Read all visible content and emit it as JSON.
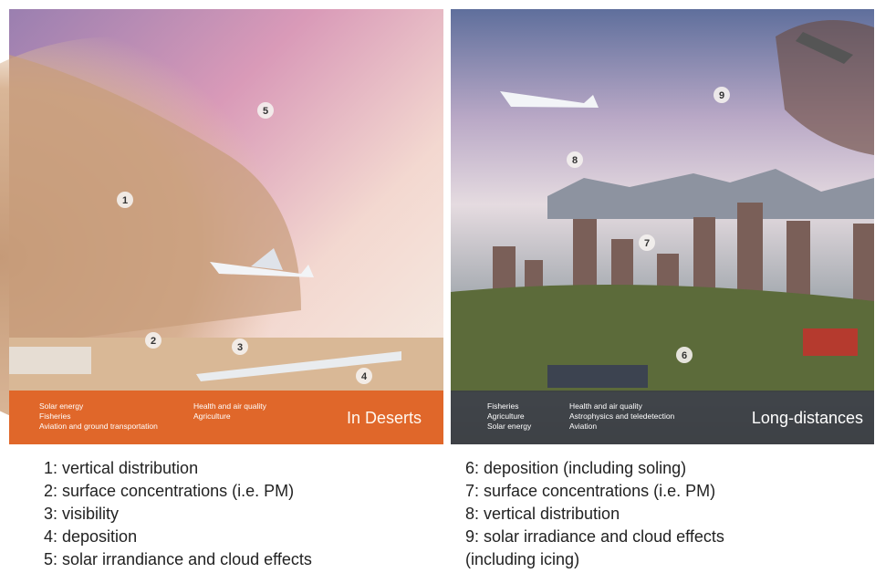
{
  "panels": [
    {
      "title": "In Deserts",
      "sectors_left": [
        "Solar energy",
        "Fisheries",
        "Aviation and ground transportation"
      ],
      "sectors_right": [
        "Health and air quality",
        "Agriculture"
      ],
      "markers": [
        "5",
        "1",
        "2",
        "3",
        "4"
      ]
    },
    {
      "title": "Long-distances",
      "sectors_left": [
        "Fisheries",
        "Agriculture",
        "Solar energy"
      ],
      "sectors_right": [
        "Health and air quality",
        "Astrophysics and teledetection",
        "Aviation"
      ],
      "markers": [
        "9",
        "8",
        "7",
        "6"
      ]
    }
  ],
  "legend_left": [
    "1: vertical distribution",
    "2: surface concentrations (i.e. PM)",
    "3: visibility",
    "4: deposition",
    "5: solar irrandiance and cloud effects"
  ],
  "legend_right": [
    "6: deposition (including soling)",
    "7: surface concentrations (i.e. PM)",
    "8: vertical distribution",
    "9: solar irradiance and cloud effects",
    "(including icing)"
  ]
}
